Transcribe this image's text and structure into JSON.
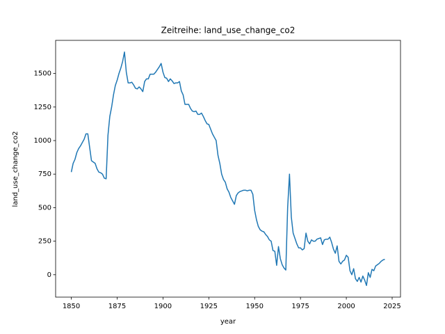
{
  "chart_data": {
    "type": "line",
    "title": "Zeitreihe: land_use_change_co2",
    "x_label": "year",
    "y_label": "land_use_change_co2",
    "x": [
      1850,
      1851,
      1852,
      1853,
      1854,
      1855,
      1856,
      1857,
      1858,
      1859,
      1860,
      1861,
      1862,
      1863,
      1864,
      1865,
      1866,
      1867,
      1868,
      1869,
      1870,
      1871,
      1872,
      1873,
      1874,
      1875,
      1876,
      1877,
      1878,
      1879,
      1880,
      1881,
      1882,
      1883,
      1884,
      1885,
      1886,
      1887,
      1888,
      1889,
      1890,
      1891,
      1892,
      1893,
      1894,
      1895,
      1896,
      1897,
      1898,
      1899,
      1900,
      1901,
      1902,
      1903,
      1904,
      1905,
      1906,
      1907,
      1908,
      1909,
      1910,
      1911,
      1912,
      1913,
      1914,
      1915,
      1916,
      1917,
      1918,
      1919,
      1920,
      1921,
      1922,
      1923,
      1924,
      1925,
      1926,
      1927,
      1928,
      1929,
      1930,
      1931,
      1932,
      1933,
      1934,
      1935,
      1936,
      1937,
      1938,
      1939,
      1940,
      1941,
      1942,
      1943,
      1944,
      1945,
      1946,
      1947,
      1948,
      1949,
      1950,
      1951,
      1952,
      1953,
      1954,
      1955,
      1956,
      1957,
      1958,
      1959,
      1960,
      1961,
      1962,
      1963,
      1964,
      1965,
      1966,
      1967,
      1968,
      1969,
      1970,
      1971,
      1972,
      1973,
      1974,
      1975,
      1976,
      1977,
      1978,
      1979,
      1980,
      1981,
      1982,
      1983,
      1984,
      1985,
      1986,
      1987,
      1988,
      1989,
      1990,
      1991,
      1992,
      1993,
      1994,
      1995,
      1996,
      1997,
      1998,
      1999,
      2000,
      2001,
      2002,
      2003,
      2004,
      2005,
      2006,
      2007,
      2008,
      2009,
      2010,
      2011,
      2012,
      2013,
      2014,
      2015,
      2016,
      2017,
      2018,
      2019,
      2020,
      2021
    ],
    "series": [
      {
        "name": "land_use_change_co2",
        "color": "#1f77b4",
        "values": [
          765,
          830,
          860,
          910,
          940,
          960,
          985,
          1010,
          1050,
          1050,
          950,
          850,
          840,
          830,
          790,
          765,
          760,
          750,
          720,
          715,
          1040,
          1180,
          1250,
          1340,
          1410,
          1450,
          1500,
          1540,
          1590,
          1660,
          1510,
          1430,
          1430,
          1435,
          1415,
          1390,
          1385,
          1400,
          1385,
          1365,
          1440,
          1460,
          1460,
          1495,
          1495,
          1495,
          1510,
          1530,
          1550,
          1575,
          1510,
          1470,
          1465,
          1440,
          1460,
          1445,
          1425,
          1430,
          1430,
          1440,
          1370,
          1340,
          1270,
          1270,
          1270,
          1240,
          1220,
          1215,
          1220,
          1195,
          1195,
          1205,
          1180,
          1150,
          1125,
          1120,
          1085,
          1050,
          1025,
          1000,
          890,
          830,
          750,
          710,
          690,
          640,
          615,
          575,
          550,
          525,
          590,
          610,
          620,
          625,
          630,
          630,
          625,
          630,
          630,
          600,
          480,
          410,
          360,
          335,
          325,
          320,
          300,
          285,
          260,
          250,
          180,
          175,
          70,
          210,
          120,
          75,
          50,
          35,
          500,
          750,
          430,
          310,
          270,
          230,
          200,
          200,
          185,
          195,
          310,
          250,
          230,
          260,
          250,
          250,
          265,
          270,
          275,
          225,
          260,
          265,
          265,
          280,
          240,
          190,
          160,
          215,
          100,
          80,
          100,
          110,
          145,
          130,
          30,
          0,
          45,
          -30,
          -50,
          -20,
          -55,
          -10,
          -40,
          -80,
          15,
          -20,
          40,
          30,
          65,
          75,
          85,
          100,
          110,
          115
        ]
      }
    ],
    "xlim": [
      1841.45,
      2029.55
    ],
    "ylim": [
      -167,
      1747
    ],
    "xticks": [
      1850,
      1875,
      1900,
      1925,
      1950,
      1975,
      2000,
      2025
    ],
    "yticks": [
      0,
      250,
      500,
      750,
      1000,
      1250,
      1500
    ]
  }
}
